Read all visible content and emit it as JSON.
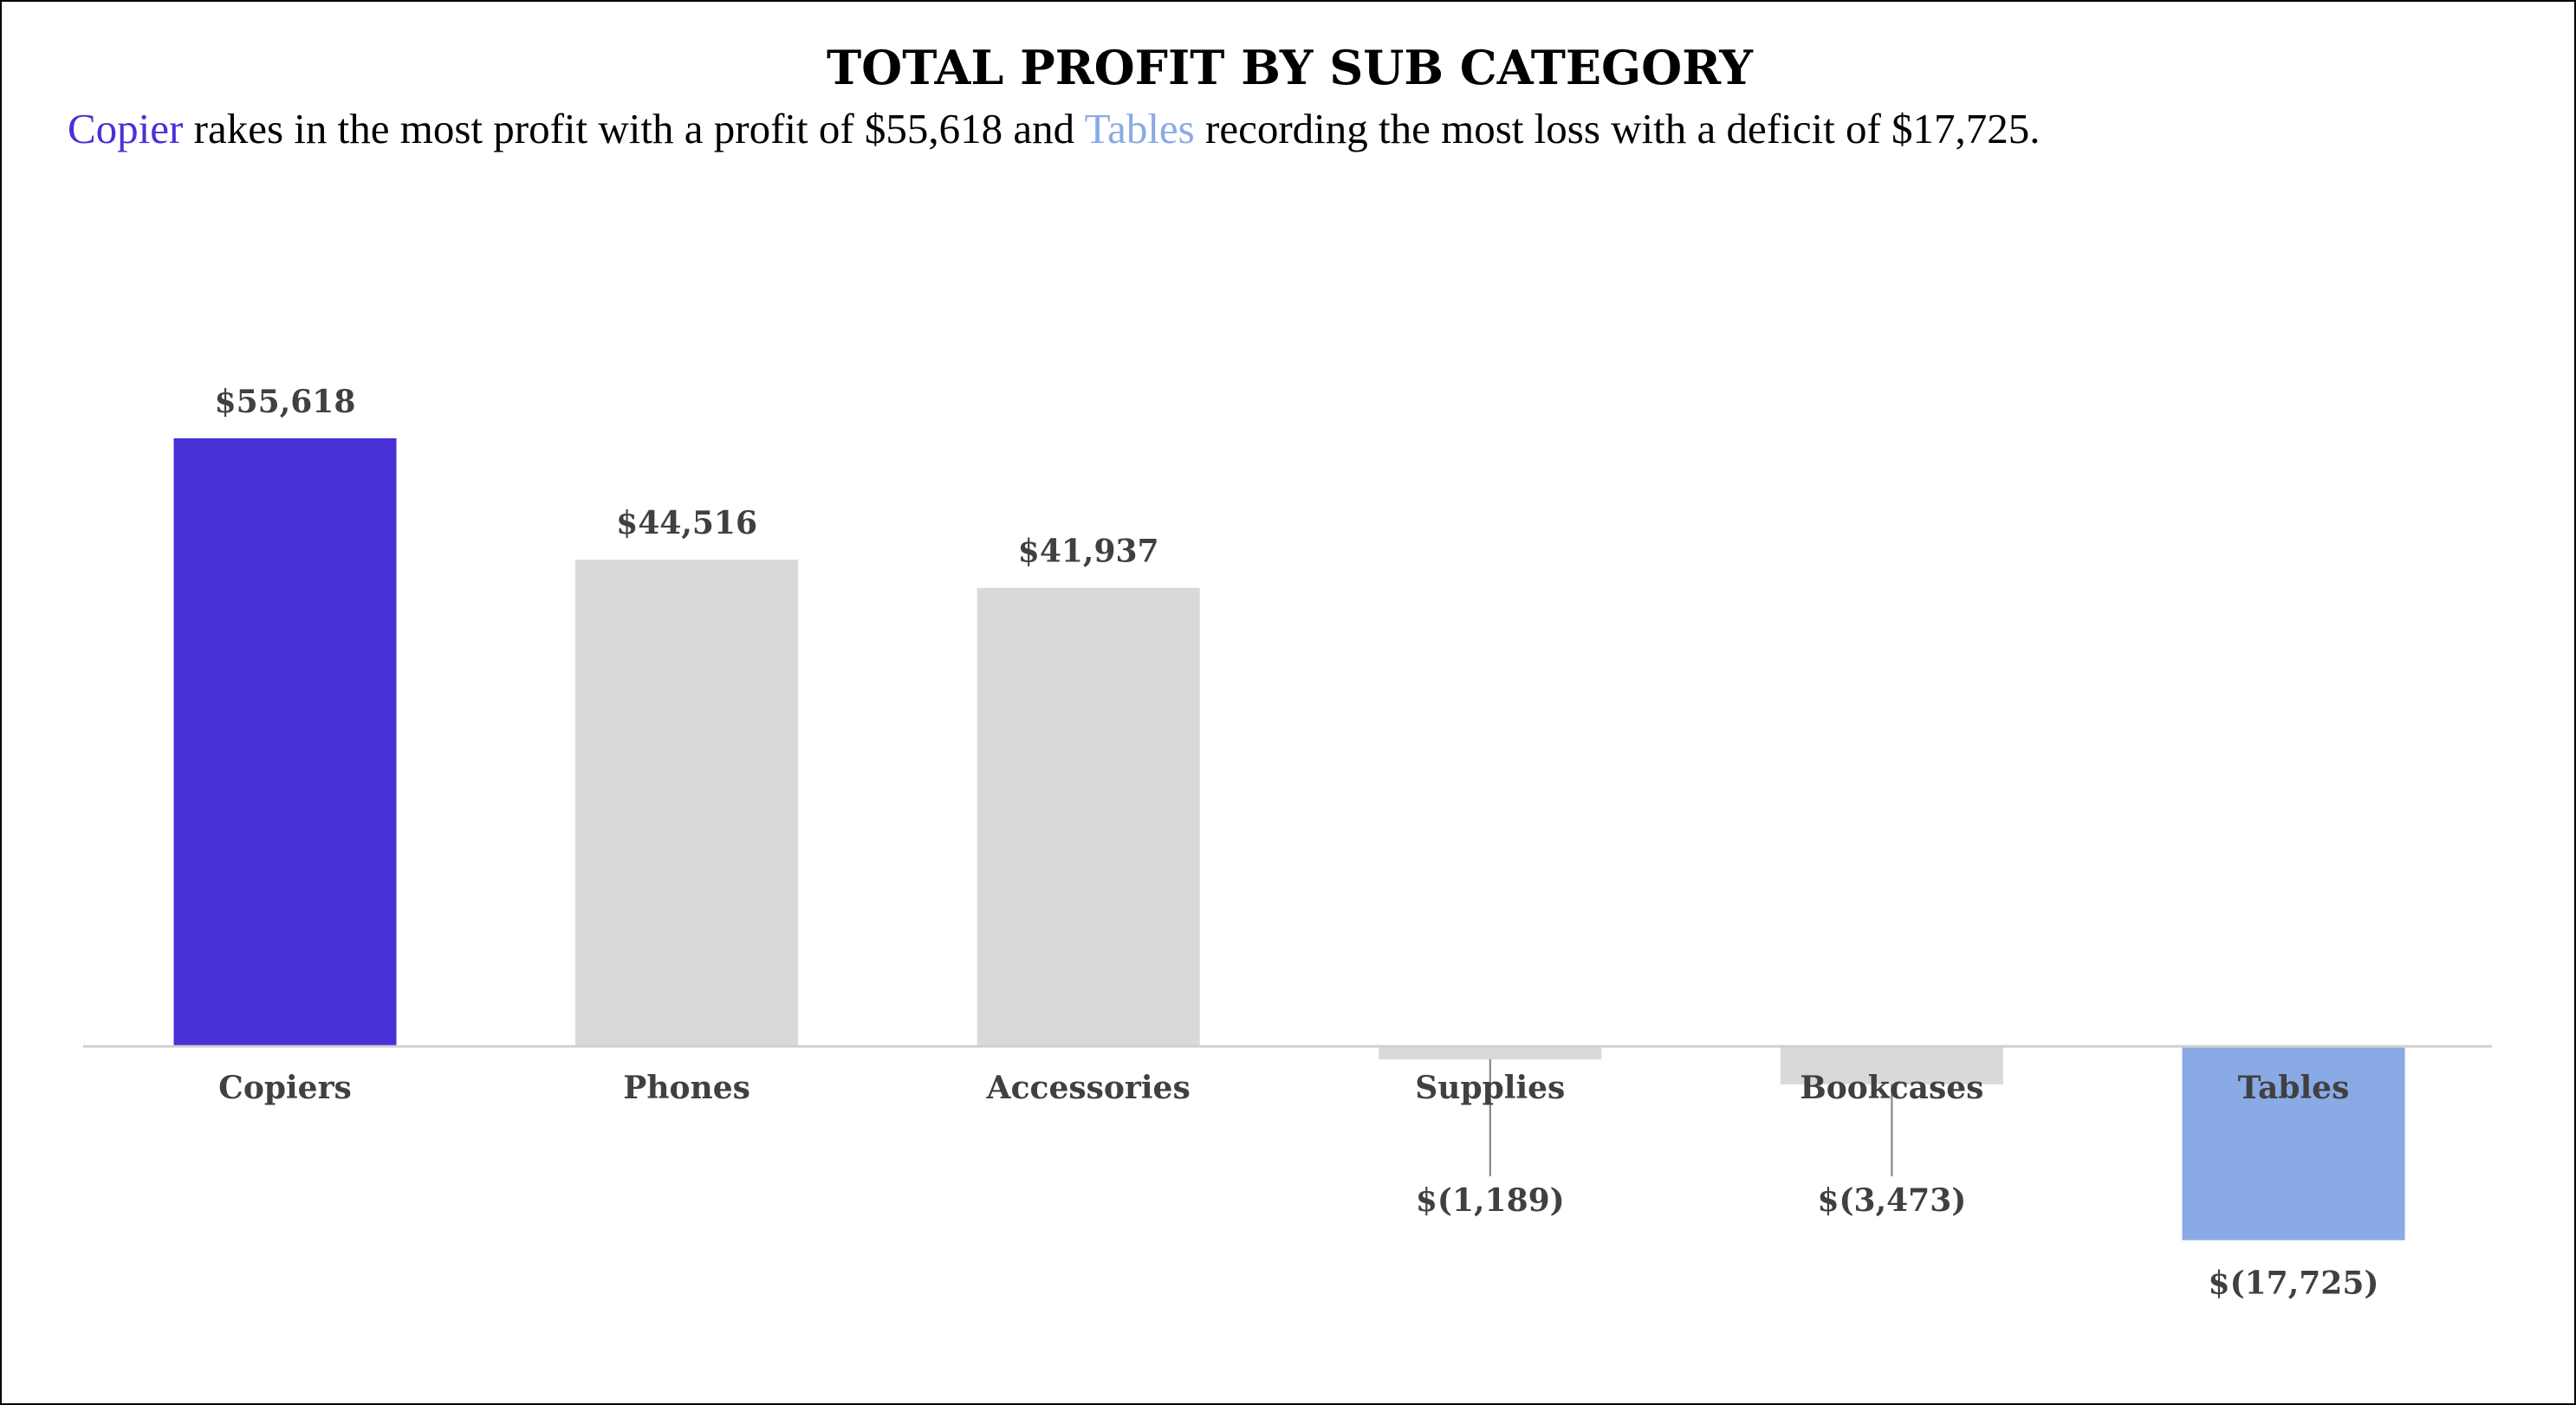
{
  "colors": {
    "highlight_max": "#4731d6",
    "highlight_min": "#8aaae5",
    "neutral": "#d9d9d9",
    "label_text": "#404040",
    "axis_line": "#d0d0d0",
    "leader_line": "#7f7f7f"
  },
  "subtitle": {
    "hl1": "Copier",
    "t1": " rakes in the most profit with a profit of $55,618 and ",
    "hl2": "Tables",
    "t2": " recording the most loss with a deficit of $17,725."
  },
  "chart_data": {
    "type": "bar",
    "title": "TOTAL PROFIT BY SUB CATEGORY",
    "categories": [
      "Copiers",
      "Phones",
      "Accessories",
      "Supplies",
      "Bookcases",
      "Tables"
    ],
    "values": [
      55618,
      44516,
      41937,
      -1189,
      -3473,
      -17725
    ],
    "value_labels": [
      "$55,618",
      "$44,516",
      "$41,937",
      "$(1,189)",
      "$(3,473)",
      "$(17,725)"
    ],
    "highlight": {
      "Copiers": "max",
      "Tables": "min"
    },
    "xlabel": "",
    "ylabel": "",
    "grid": false,
    "legend": "none"
  }
}
